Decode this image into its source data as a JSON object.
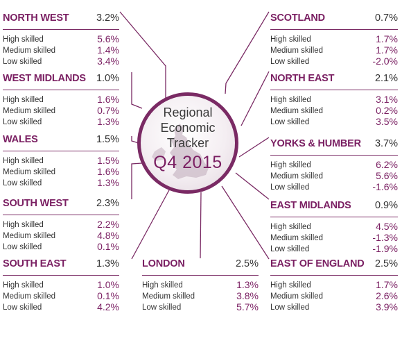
{
  "hub": {
    "line1": "Regional",
    "line2": "Economic",
    "line3": "Tracker",
    "quarter": "Q4 2015"
  },
  "regions": {
    "north_west": {
      "name": "NORTH WEST",
      "total": "3.2%",
      "rows": [
        {
          "label": "High skilled",
          "value": "5.6%"
        },
        {
          "label": "Medium skilled",
          "value": "1.4%"
        },
        {
          "label": "Low skilled",
          "value": "3.4%"
        }
      ]
    },
    "west_midlands": {
      "name": "WEST MIDLANDS",
      "total": "1.0%",
      "rows": [
        {
          "label": "High skilled",
          "value": "1.6%"
        },
        {
          "label": "Medium skilled",
          "value": "0.7%"
        },
        {
          "label": "Low skilled",
          "value": "1.3%"
        }
      ]
    },
    "wales": {
      "name": "WALES",
      "total": "1.5%",
      "rows": [
        {
          "label": "High skilled",
          "value": "1.5%"
        },
        {
          "label": "Medium skilled",
          "value": "1.6%"
        },
        {
          "label": "Low skilled",
          "value": "1.3%"
        }
      ]
    },
    "south_west": {
      "name": "SOUTH WEST",
      "total": "2.3%",
      "rows": [
        {
          "label": "High skilled",
          "value": "2.2%"
        },
        {
          "label": "Medium skilled",
          "value": "4.8%"
        },
        {
          "label": "Low skilled",
          "value": "0.1%"
        }
      ]
    },
    "south_east": {
      "name": "SOUTH EAST",
      "total": "1.3%",
      "rows": [
        {
          "label": "High skilled",
          "value": "1.0%"
        },
        {
          "label": "Medium skilled",
          "value": "0.1%"
        },
        {
          "label": "Low skilled",
          "value": "4.2%"
        }
      ]
    },
    "london": {
      "name": "LONDON",
      "total": "2.5%",
      "rows": [
        {
          "label": "High skilled",
          "value": "1.3%"
        },
        {
          "label": "Medium skilled",
          "value": "3.8%"
        },
        {
          "label": "Low skilled",
          "value": "5.7%"
        }
      ]
    },
    "scotland": {
      "name": "SCOTLAND",
      "total": "0.7%",
      "rows": [
        {
          "label": "High skilled",
          "value": "1.7%"
        },
        {
          "label": "Medium skilled",
          "value": "1.7%"
        },
        {
          "label": "Low skilled",
          "value": "-2.0%"
        }
      ]
    },
    "north_east": {
      "name": "NORTH EAST",
      "total": "2.1%",
      "rows": [
        {
          "label": "High skilled",
          "value": "3.1%"
        },
        {
          "label": "Medium skilled",
          "value": "0.2%"
        },
        {
          "label": "Low skilled",
          "value": "3.5%"
        }
      ]
    },
    "yorks_humber": {
      "name": "YORKS & HUMBER",
      "total": "3.7%",
      "rows": [
        {
          "label": "High skilled",
          "value": "6.2%"
        },
        {
          "label": "Medium skilled",
          "value": "5.6%"
        },
        {
          "label": "Low skilled",
          "value": "-1.6%"
        }
      ]
    },
    "east_midlands": {
      "name": "EAST MIDLANDS",
      "total": "0.9%",
      "rows": [
        {
          "label": "High skilled",
          "value": "4.5%"
        },
        {
          "label": "Medium skilled",
          "value": "-1.3%"
        },
        {
          "label": "Low skilled",
          "value": "-1.9%"
        }
      ]
    },
    "east_of_england": {
      "name": "EAST OF ENGLAND",
      "total": "2.5%",
      "rows": [
        {
          "label": "High skilled",
          "value": "1.7%"
        },
        {
          "label": "Medium skilled",
          "value": "2.6%"
        },
        {
          "label": "Low skilled",
          "value": "3.9%"
        }
      ]
    }
  },
  "colors": {
    "accent": "#7a1f62",
    "text": "#333333",
    "line": "#7a2a64"
  }
}
